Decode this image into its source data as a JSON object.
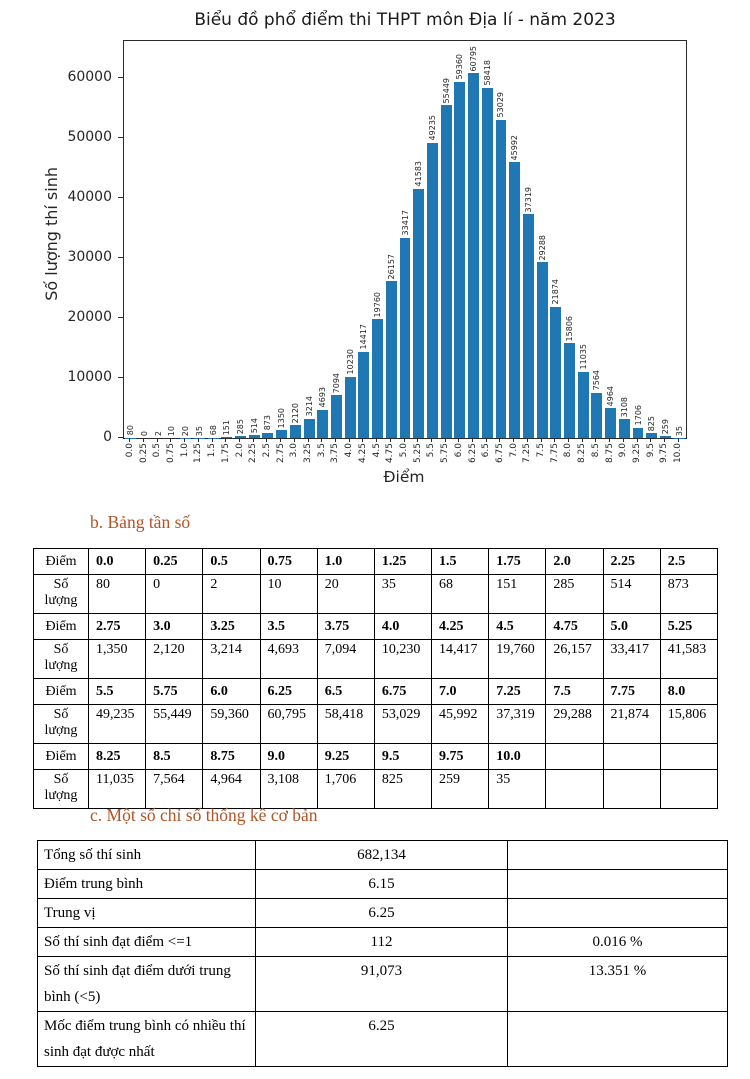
{
  "chart_data": {
    "type": "bar",
    "title": "Biểu đồ phổ điểm thi THPT môn Địa lí - năm 2023",
    "xlabel": "Điểm",
    "ylabel": "Số lượng thí sinh",
    "bar_color": "#1f77b4",
    "categories": [
      "0.0",
      "0.25",
      "0.5",
      "0.75",
      "1.0",
      "1.25",
      "1.5",
      "1.75",
      "2.0",
      "2.25",
      "2.5",
      "2.75",
      "3.0",
      "3.25",
      "3.5",
      "3.75",
      "4.0",
      "4.25",
      "4.5",
      "4.75",
      "5.0",
      "5.25",
      "5.5",
      "5.75",
      "6.0",
      "6.25",
      "6.5",
      "6.75",
      "7.0",
      "7.25",
      "7.5",
      "7.75",
      "8.0",
      "8.25",
      "8.5",
      "8.75",
      "9.0",
      "9.25",
      "9.5",
      "9.75",
      "10.0"
    ],
    "values": [
      80,
      0,
      2,
      10,
      20,
      35,
      68,
      151,
      285,
      514,
      873,
      1350,
      2120,
      3214,
      4693,
      7094,
      10230,
      14417,
      19760,
      26157,
      33417,
      41583,
      49235,
      55449,
      59360,
      60795,
      58418,
      53029,
      45992,
      37319,
      29288,
      21874,
      15806,
      11035,
      7564,
      4964,
      3108,
      1706,
      825,
      259,
      35
    ],
    "yticks": [
      0,
      10000,
      20000,
      30000,
      40000,
      50000,
      60000
    ],
    "ylim": [
      0,
      66000
    ],
    "grid": "off",
    "legend": "none",
    "bar_label_rotation": 90
  },
  "sections": {
    "b_heading": "b. Bảng tần số",
    "c_heading": "c. Một số chỉ số thống kê cơ bản",
    "heading_color": "#b05426"
  },
  "freq_table": {
    "score_label": "Điểm",
    "count_label": "Số lượng",
    "pairs": [
      {
        "scores": [
          "0.0",
          "0.25",
          "0.5",
          "0.75",
          "1.0",
          "1.25",
          "1.5",
          "1.75",
          "2.0",
          "2.25",
          "2.5"
        ],
        "counts": [
          "80",
          "0",
          "2",
          "10",
          "20",
          "35",
          "68",
          "151",
          "285",
          "514",
          "873"
        ]
      },
      {
        "scores": [
          "2.75",
          "3.0",
          "3.25",
          "3.5",
          "3.75",
          "4.0",
          "4.25",
          "4.5",
          "4.75",
          "5.0",
          "5.25"
        ],
        "counts": [
          "1,350",
          "2,120",
          "3,214",
          "4,693",
          "7,094",
          "10,230",
          "14,417",
          "19,760",
          "26,157",
          "33,417",
          "41,583"
        ]
      },
      {
        "scores": [
          "5.5",
          "5.75",
          "6.0",
          "6.25",
          "6.5",
          "6.75",
          "7.0",
          "7.25",
          "7.5",
          "7.75",
          "8.0"
        ],
        "counts": [
          "49,235",
          "55,449",
          "59,360",
          "60,795",
          "58,418",
          "53,029",
          "45,992",
          "37,319",
          "29,288",
          "21,874",
          "15,806"
        ]
      },
      {
        "scores": [
          "8.25",
          "8.5",
          "8.75",
          "9.0",
          "9.25",
          "9.5",
          "9.75",
          "10.0",
          "",
          "",
          ""
        ],
        "counts": [
          "11,035",
          "7,564",
          "4,964",
          "3,108",
          "1,706",
          "825",
          "259",
          "35",
          "",
          "",
          ""
        ]
      }
    ]
  },
  "stats_table": {
    "rows": [
      {
        "label": "Tổng số thí sinh",
        "value": "682,134",
        "percent": ""
      },
      {
        "label": "Điểm trung bình",
        "value": "6.15",
        "percent": ""
      },
      {
        "label": "Trung vị",
        "value": "6.25",
        "percent": ""
      },
      {
        "label": "Số thí sinh đạt điểm <=1",
        "value": "112",
        "percent": "0.016 %"
      },
      {
        "label": "Số thí sinh đạt điểm dưới trung bình (<5)",
        "value": "91,073",
        "percent": "13.351 %"
      },
      {
        "label": "Mốc điểm trung bình có nhiều thí sinh đạt được nhất",
        "value": "6.25",
        "percent": ""
      }
    ]
  }
}
